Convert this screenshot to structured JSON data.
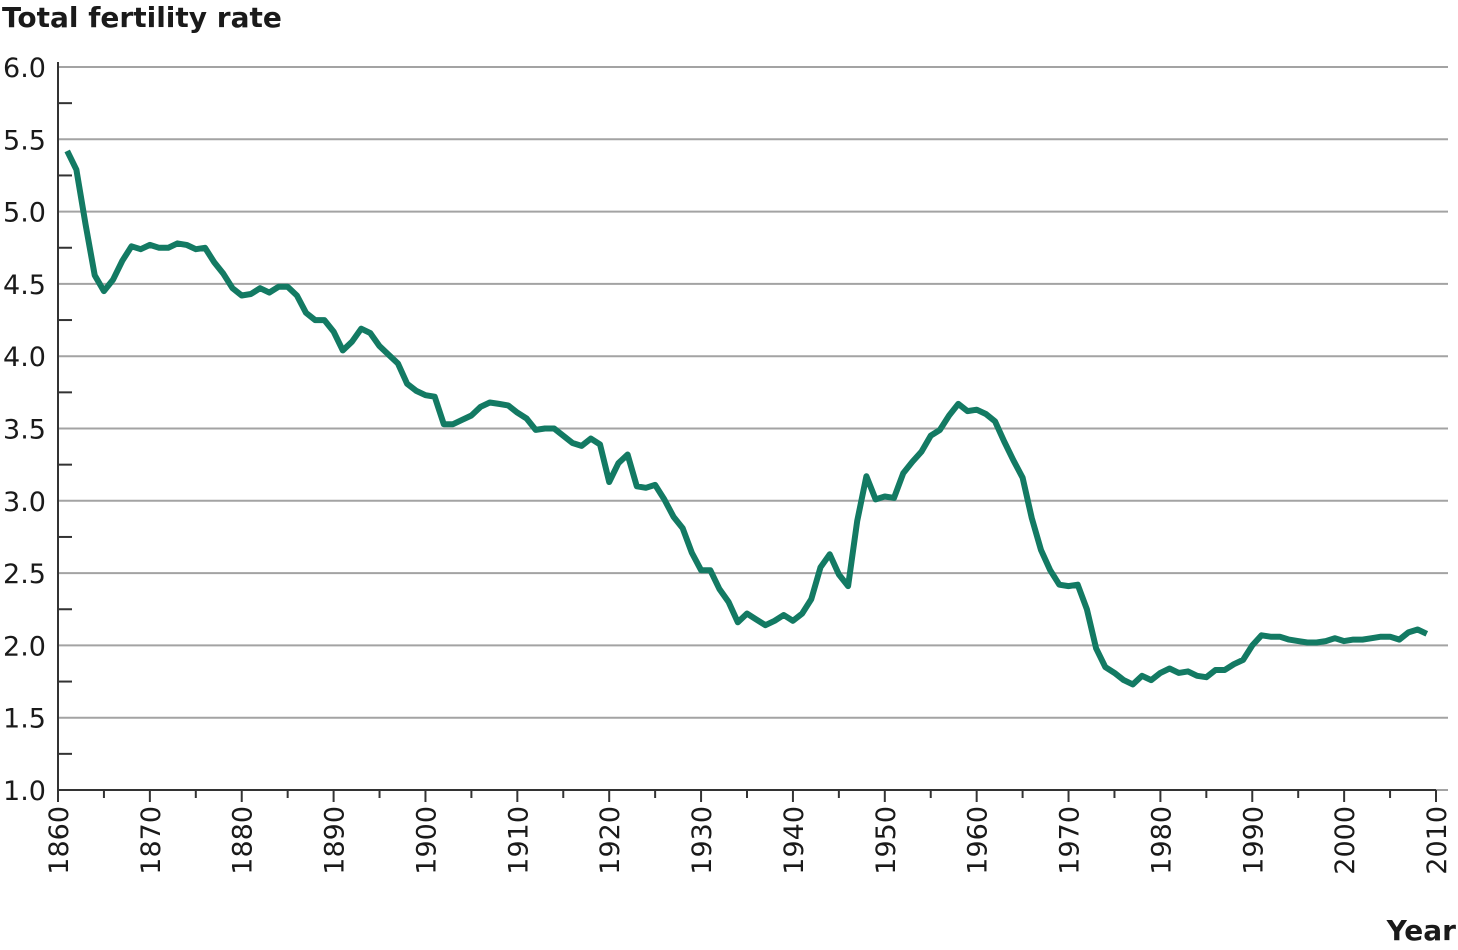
{
  "chart_data": {
    "type": "line",
    "y_label": "Total fertility rate",
    "x_label": "Year",
    "x": [
      1861,
      1862,
      1863,
      1864,
      1865,
      1866,
      1867,
      1868,
      1869,
      1870,
      1871,
      1872,
      1873,
      1874,
      1875,
      1876,
      1877,
      1878,
      1879,
      1880,
      1881,
      1882,
      1883,
      1884,
      1885,
      1886,
      1887,
      1888,
      1889,
      1890,
      1891,
      1892,
      1893,
      1894,
      1895,
      1896,
      1897,
      1898,
      1899,
      1900,
      1901,
      1902,
      1903,
      1904,
      1905,
      1906,
      1907,
      1908,
      1909,
      1910,
      1911,
      1912,
      1913,
      1914,
      1915,
      1916,
      1917,
      1918,
      1919,
      1920,
      1921,
      1922,
      1923,
      1924,
      1925,
      1926,
      1927,
      1928,
      1929,
      1930,
      1931,
      1932,
      1933,
      1934,
      1935,
      1936,
      1937,
      1938,
      1939,
      1940,
      1941,
      1942,
      1943,
      1944,
      1945,
      1946,
      1947,
      1948,
      1949,
      1950,
      1951,
      1952,
      1953,
      1954,
      1955,
      1956,
      1957,
      1958,
      1959,
      1960,
      1961,
      1962,
      1963,
      1964,
      1965,
      1966,
      1967,
      1968,
      1969,
      1970,
      1971,
      1972,
      1973,
      1974,
      1975,
      1976,
      1977,
      1978,
      1979,
      1980,
      1981,
      1982,
      1983,
      1984,
      1985,
      1986,
      1987,
      1988,
      1989,
      1990,
      1991,
      1992,
      1993,
      1994,
      1995,
      1996,
      1997,
      1998,
      1999,
      2000,
      2001,
      2002,
      2003,
      2004,
      2005,
      2006,
      2007,
      2008,
      2009
    ],
    "series": [
      {
        "name": "Total fertility rate",
        "color": "#137a63",
        "values": [
          5.42,
          5.29,
          4.91,
          4.56,
          4.45,
          4.53,
          4.66,
          4.76,
          4.74,
          4.77,
          4.75,
          4.75,
          4.78,
          4.77,
          4.74,
          4.75,
          4.65,
          4.57,
          4.47,
          4.42,
          4.43,
          4.47,
          4.44,
          4.48,
          4.48,
          4.42,
          4.3,
          4.25,
          4.25,
          4.17,
          4.04,
          4.1,
          4.19,
          4.16,
          4.07,
          4.01,
          3.95,
          3.81,
          3.76,
          3.73,
          3.72,
          3.53,
          3.53,
          3.56,
          3.59,
          3.65,
          3.68,
          3.67,
          3.66,
          3.61,
          3.57,
          3.49,
          3.5,
          3.5,
          3.45,
          3.4,
          3.38,
          3.43,
          3.39,
          3.13,
          3.26,
          3.32,
          3.1,
          3.09,
          3.11,
          3.01,
          2.89,
          2.81,
          2.64,
          2.52,
          2.52,
          2.39,
          2.3,
          2.16,
          2.22,
          2.18,
          2.14,
          2.17,
          2.21,
          2.17,
          2.22,
          2.32,
          2.54,
          2.63,
          2.49,
          2.41,
          2.86,
          3.17,
          3.01,
          3.03,
          3.02,
          3.19,
          3.27,
          3.34,
          3.45,
          3.49,
          3.59,
          3.67,
          3.62,
          3.63,
          3.6,
          3.55,
          3.41,
          3.28,
          3.16,
          2.88,
          2.66,
          2.52,
          2.42,
          2.41,
          2.42,
          2.25,
          1.98,
          1.85,
          1.81,
          1.76,
          1.73,
          1.79,
          1.76,
          1.81,
          1.84,
          1.81,
          1.82,
          1.79,
          1.78,
          1.83,
          1.83,
          1.87,
          1.9,
          2.0,
          2.07,
          2.06,
          2.06,
          2.04,
          2.03,
          2.02,
          2.02,
          2.03,
          2.05,
          2.03,
          2.04,
          2.04,
          2.05,
          2.06,
          2.06,
          2.04,
          2.09,
          2.11,
          2.08
        ]
      }
    ],
    "xlim": [
      1860,
      2010
    ],
    "ylim": [
      1.0,
      6.0
    ],
    "xticks": [
      1860,
      1870,
      1880,
      1890,
      1900,
      1910,
      1920,
      1930,
      1940,
      1950,
      1960,
      1970,
      1980,
      1990,
      2000,
      2010
    ],
    "xminorticks": [
      1865,
      1875,
      1885,
      1895,
      1905,
      1915,
      1925,
      1935,
      1945,
      1955,
      1965,
      1975,
      1985,
      1995,
      2005
    ],
    "yticks": [
      {
        "value": 1.0,
        "label": "1.0"
      },
      1.5,
      {
        "value": 2.0,
        "label": "2.0"
      },
      2.5,
      {
        "value": 3.0,
        "label": "3.0"
      },
      3.5,
      {
        "value": 4.0,
        "label": "4.0"
      },
      4.5,
      {
        "value": 5.0,
        "label": "5.0"
      },
      5.5,
      {
        "value": 6.0,
        "label": "6.0"
      }
    ],
    "yminorticks": [
      1.25,
      1.75,
      2.25,
      2.75,
      3.25,
      3.75,
      4.25,
      4.75,
      5.25,
      5.75
    ],
    "grid": true
  }
}
